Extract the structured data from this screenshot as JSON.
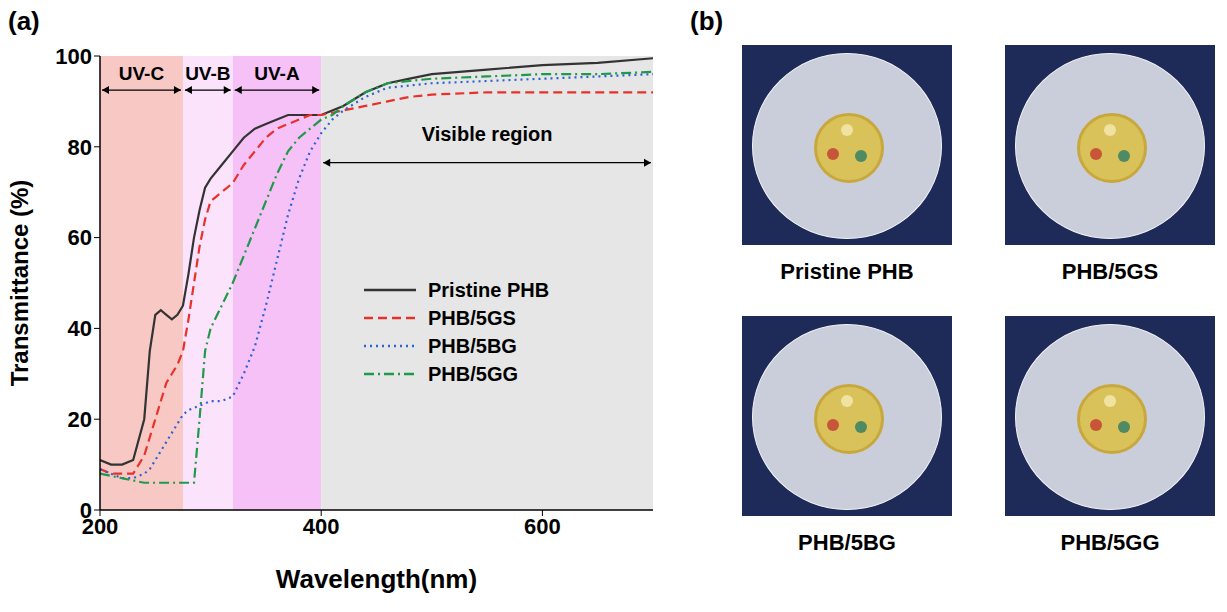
{
  "chart_data": {
    "type": "line",
    "panel": "(a)",
    "x_label": "Wavelength(nm)",
    "y_label": "Transmittance (%)",
    "x": [
      200,
      210,
      220,
      230,
      240,
      245,
      250,
      255,
      260,
      265,
      270,
      275,
      280,
      285,
      290,
      295,
      300,
      310,
      320,
      330,
      340,
      350,
      360,
      370,
      380,
      390,
      400,
      410,
      420,
      440,
      460,
      480,
      500,
      550,
      600,
      650,
      700
    ],
    "xlim": [
      200,
      700
    ],
    "xticks": [
      200,
      400,
      600
    ],
    "ylim": [
      0,
      100
    ],
    "yticks": [
      0,
      20,
      40,
      60,
      80,
      100
    ],
    "legend": "right",
    "regions": [
      {
        "label": "UV-C",
        "from": 200,
        "to": 275,
        "color": "#f8c9c4"
      },
      {
        "label": "UV-B",
        "from": 275,
        "to": 320,
        "color": "#fbe3fb"
      },
      {
        "label": "UV-A",
        "from": 320,
        "to": 400,
        "color": "#f6c1f6"
      },
      {
        "label": "Visible region",
        "from": 400,
        "to": 700,
        "color": "#e6e6e6"
      }
    ],
    "series": [
      {
        "name": "Pristine PHB",
        "color": "#333333",
        "line_style": "solid",
        "values": [
          11,
          10,
          10,
          11,
          20,
          35,
          43,
          44,
          43,
          42,
          43,
          45,
          52,
          60,
          66,
          71,
          73,
          76,
          79,
          82,
          84,
          85,
          86,
          87,
          87,
          87,
          87,
          88,
          89,
          92,
          94,
          95,
          96,
          97,
          98,
          98.5,
          99.5
        ]
      },
      {
        "name": "PHB/5GS",
        "color": "#e8312a",
        "line_style": "dashed",
        "values": [
          9,
          8,
          8,
          8,
          12,
          16,
          20,
          24,
          28,
          30,
          32,
          35,
          42,
          50,
          58,
          64,
          68,
          70,
          72,
          76,
          79,
          82,
          84,
          85,
          86,
          87,
          87,
          87.5,
          88,
          89,
          90,
          91,
          91.5,
          92,
          92,
          92,
          92
        ]
      },
      {
        "name": "PHB/5BG",
        "color": "#2a62d8",
        "line_style": "dotted",
        "values": [
          9,
          8,
          7,
          7,
          8,
          9,
          11,
          13,
          15,
          17,
          19,
          21,
          22,
          22.5,
          23,
          23.5,
          24,
          24,
          25,
          30,
          36,
          45,
          55,
          65,
          73,
          79,
          83,
          86,
          88,
          91,
          93,
          93.5,
          94,
          94.5,
          95,
          95.5,
          96
        ]
      },
      {
        "name": "PHB/5GG",
        "color": "#1f9a4a",
        "line_style": "dashdot",
        "values": [
          8,
          7.5,
          7,
          6.5,
          6,
          6,
          6,
          6,
          6,
          6,
          6,
          6,
          6,
          6,
          20,
          35,
          40,
          45,
          50,
          56,
          62,
          68,
          74,
          79,
          82,
          84,
          86,
          87,
          89,
          92,
          94,
          94.5,
          95,
          95.5,
          96,
          96,
          96.5
        ]
      }
    ]
  },
  "photos": {
    "panel": "(b)",
    "items": [
      "Pristine PHB",
      "PHB/5GS",
      "PHB/5BG",
      "PHB/5GG"
    ]
  }
}
